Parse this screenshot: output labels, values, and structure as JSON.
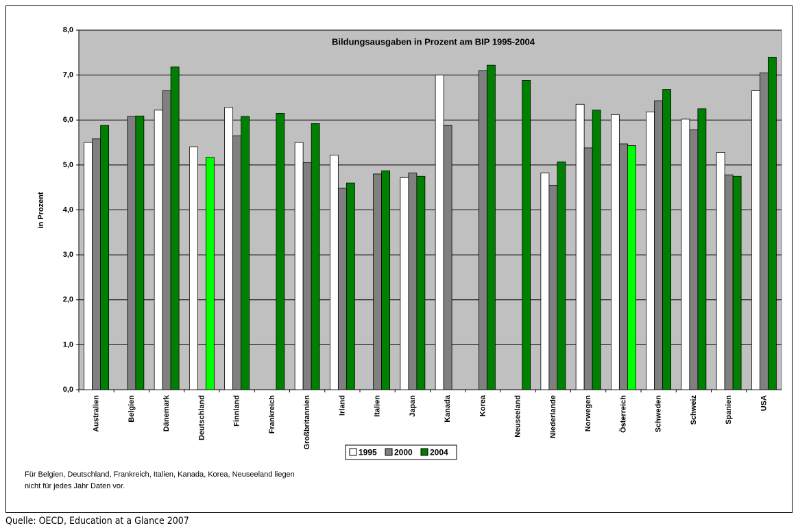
{
  "chart_data": {
    "type": "bar",
    "title": "Bildungsausgaben in Prozent am BIP 1995-2004",
    "y_label": "in Prozent",
    "categories": [
      "Australien",
      "Belgien",
      "Dänemark",
      "Deutschland",
      "Finnland",
      "Frankreich",
      "Großbritannien",
      "Irland",
      "Italien",
      "Japan",
      "Kanada",
      "Korea",
      "Neuseeland",
      "Niederlande",
      "Norwegen",
      "Österreich",
      "Schweden",
      "Schweiz",
      "Spanien",
      "USA"
    ],
    "series": [
      {
        "name": "1995",
        "color": "#ffffff",
        "values": [
          5.5,
          null,
          6.22,
          5.4,
          6.28,
          null,
          5.5,
          5.22,
          null,
          4.72,
          7.0,
          null,
          null,
          4.82,
          6.35,
          6.12,
          6.18,
          6.02,
          5.28,
          6.65
        ]
      },
      {
        "name": "2000",
        "color": "#808080",
        "values": [
          5.58,
          6.08,
          6.65,
          null,
          5.65,
          null,
          5.05,
          4.48,
          4.8,
          4.82,
          5.88,
          7.1,
          null,
          4.55,
          5.38,
          5.47,
          6.43,
          5.78,
          4.78,
          7.05
        ]
      },
      {
        "name": "2004",
        "color": "#008000",
        "values": [
          5.88,
          6.09,
          7.18,
          5.17,
          6.08,
          6.15,
          5.92,
          4.6,
          4.87,
          4.75,
          null,
          7.22,
          6.88,
          5.07,
          6.22,
          5.43,
          6.68,
          6.25,
          4.75,
          7.4
        ],
        "highlight_color": "#00ff00",
        "highlight_categories": [
          "Deutschland",
          "Österreich"
        ]
      }
    ],
    "ylim": [
      0,
      8
    ],
    "yticks": [
      {
        "value": 0,
        "label": "0,0"
      },
      {
        "value": 1,
        "label": "1,0"
      },
      {
        "value": 2,
        "label": "2,0"
      },
      {
        "value": 3,
        "label": "3,0"
      },
      {
        "value": 4,
        "label": "4,0"
      },
      {
        "value": 5,
        "label": "5,0"
      },
      {
        "value": 6,
        "label": "6,0"
      },
      {
        "value": 7,
        "label": "7,0"
      },
      {
        "value": 8,
        "label": "8,0"
      }
    ],
    "grid": true,
    "plot_background": "#c0c0c0",
    "legend": "bottom",
    "note": [
      "Für Belgien, Deutschland, Frankreich, Italien, Kanada, Korea, Neuseeland liegen",
      "nicht für jedes Jahr Daten vor."
    ],
    "source": "Quelle: OECD, Education at a Glance 2007"
  }
}
